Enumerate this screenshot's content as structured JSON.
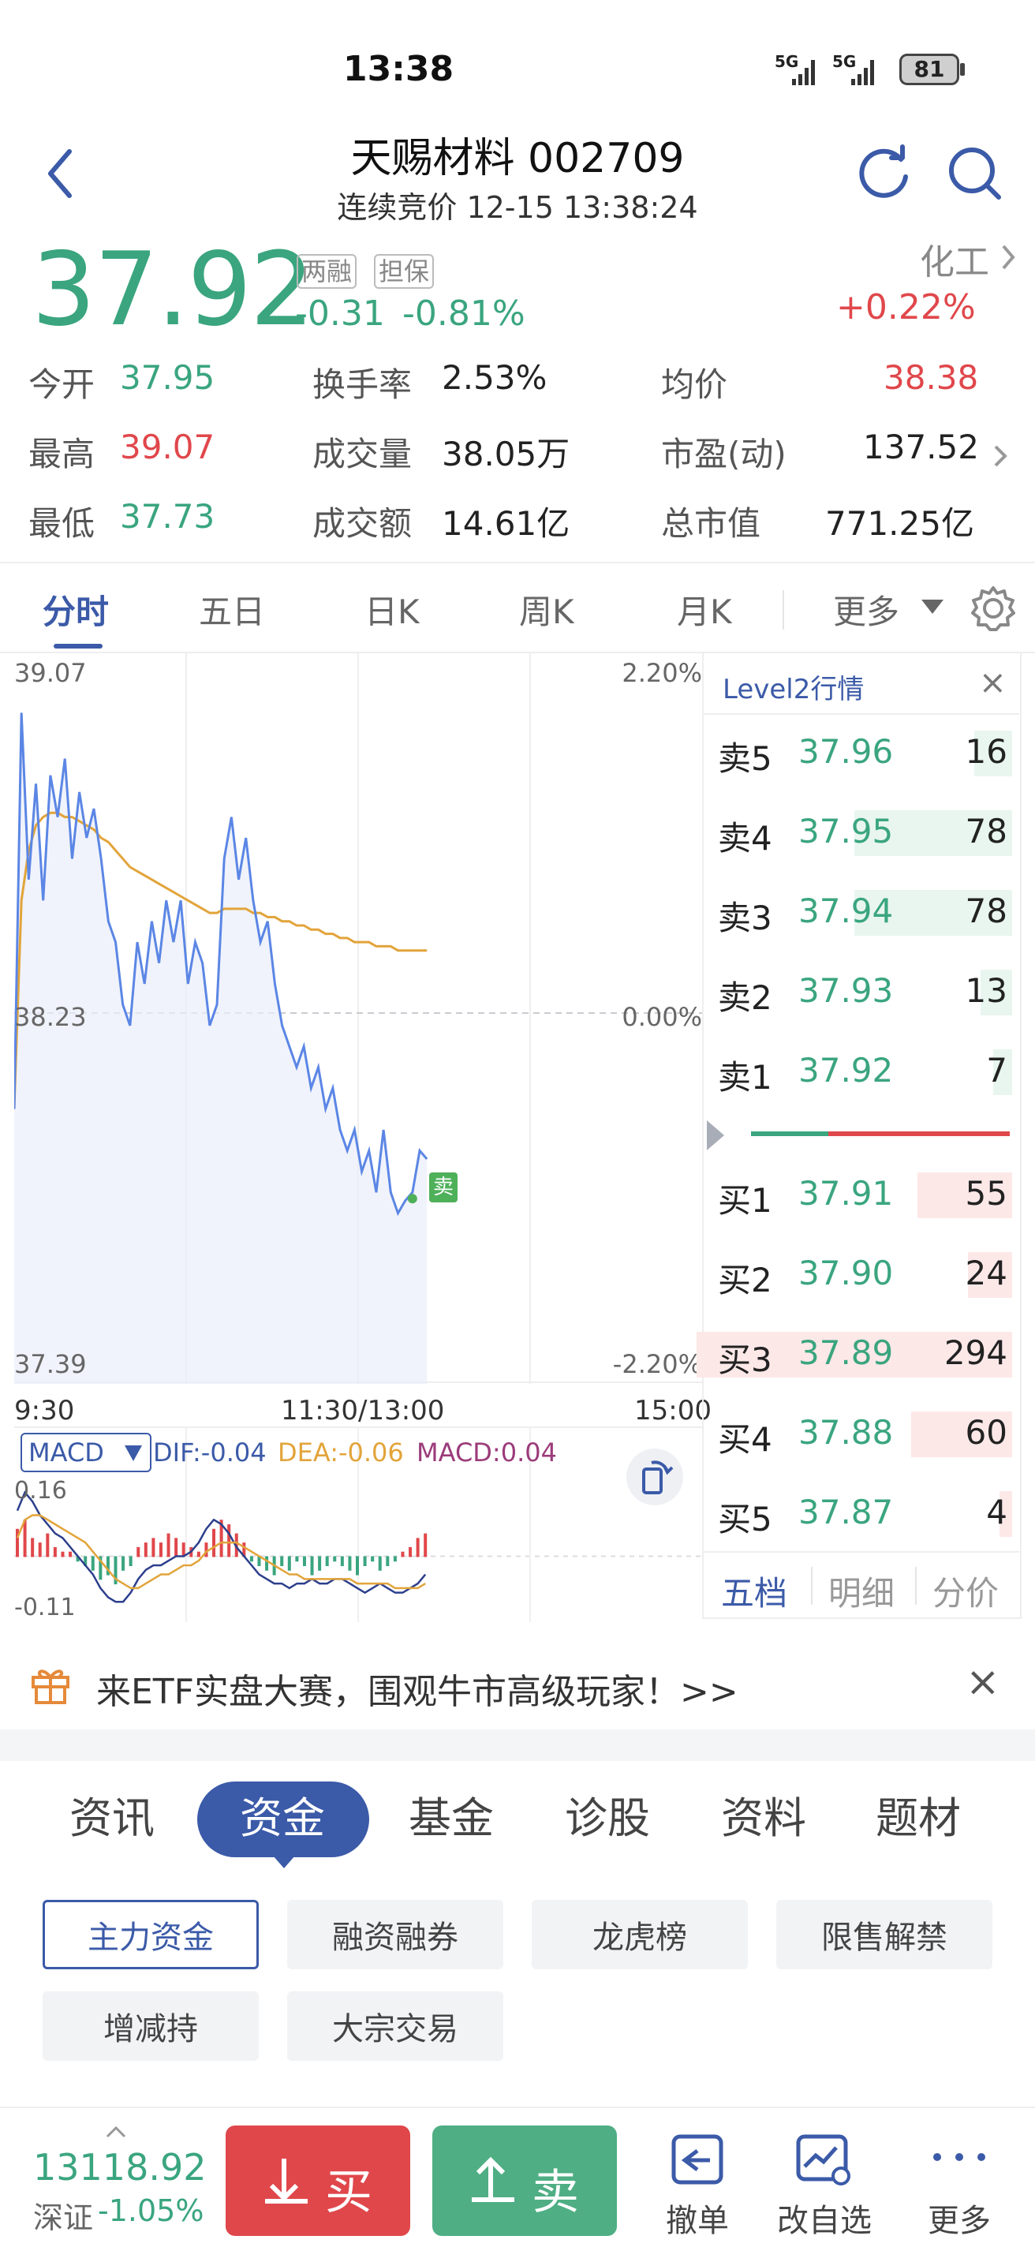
{
  "status_bar": {
    "time": "13:38",
    "signal1": "5G",
    "signal2": "5G",
    "battery": "81"
  },
  "header": {
    "title": "天赐材料 002709",
    "subtitle": "连续竞价 12-15 13:38:24"
  },
  "quote": {
    "price": "37.92",
    "tag1": "两融",
    "tag2": "担保",
    "change": "-0.31",
    "change_pct": "-0.81%",
    "sector": "化工",
    "sector_change": "+0.22%",
    "fields": [
      {
        "label": "今开",
        "value": "37.95"
      },
      {
        "label": "换手率",
        "value": "2.53%"
      },
      {
        "label": "均价",
        "value": "38.38"
      },
      {
        "label": "最高",
        "value": "39.07"
      },
      {
        "label": "成交量",
        "value": "38.05万"
      },
      {
        "label": "市盈(动)",
        "value": "137.52"
      },
      {
        "label": "最低",
        "value": "37.73"
      },
      {
        "label": "成交额",
        "value": "14.61亿"
      },
      {
        "label": "总市值",
        "value": "771.25亿"
      }
    ]
  },
  "chart_tabs": [
    "分时",
    "五日",
    "日K",
    "周K",
    "月K",
    "更多"
  ],
  "chart": {
    "y_high": "39.07",
    "y_mid": "38.23",
    "y_low": "37.39",
    "pct_high": "2.20%",
    "pct_mid": "0.00%",
    "pct_low": "-2.20%",
    "x_start": "9:30",
    "x_mid": "11:30/13:00",
    "x_end": "15:00",
    "sell_marker": "卖",
    "macd_label": "MACD",
    "dif": "DIF:-0.04",
    "dea": "DEA:-0.06",
    "macd": "MACD:0.04",
    "macd_high": "0.16",
    "macd_low": "-0.11"
  },
  "chart_data": {
    "type": "line",
    "title": "",
    "xlabel": "",
    "ylabel": "",
    "ylim": [
      37.39,
      39.07
    ],
    "reference_price": 38.23,
    "x_range": [
      "9:30",
      "15:00"
    ],
    "series": [
      {
        "price": [
          38.0,
          38.95,
          38.55,
          38.78,
          38.5,
          38.8,
          38.7,
          38.84,
          38.6,
          38.76,
          38.65,
          38.72,
          38.6,
          38.45,
          38.4,
          38.25,
          38.2,
          38.4,
          38.3,
          38.45,
          38.35,
          38.5,
          38.4,
          38.5,
          38.3,
          38.4,
          38.35,
          38.2,
          38.25,
          38.6,
          38.7,
          38.55,
          38.65,
          38.5,
          38.4,
          38.45,
          38.3,
          38.2,
          38.15,
          38.1,
          38.15,
          38.05,
          38.1,
          38.0,
          38.05,
          37.95,
          37.9,
          37.95,
          37.85,
          37.9,
          37.8,
          37.95,
          37.8,
          37.75,
          37.78,
          37.8,
          37.9,
          37.88
        ]
      },
      {
        "avg": [
          38.0,
          38.5,
          38.62,
          38.68,
          38.7,
          38.71,
          38.71,
          38.7,
          38.7,
          38.69,
          38.68,
          38.67,
          38.65,
          38.64,
          38.62,
          38.6,
          38.58,
          38.57,
          38.56,
          38.55,
          38.54,
          38.53,
          38.52,
          38.51,
          38.5,
          38.49,
          38.48,
          38.47,
          38.47,
          38.48,
          38.48,
          38.48,
          38.48,
          38.47,
          38.47,
          38.46,
          38.46,
          38.45,
          38.45,
          38.44,
          38.44,
          38.43,
          38.43,
          38.42,
          38.42,
          38.41,
          38.41,
          38.4,
          38.4,
          38.4,
          38.39,
          38.39,
          38.39,
          38.38,
          38.38,
          38.38,
          38.38,
          38.38
        ]
      }
    ],
    "macd_ylim": [
      -0.11,
      0.16
    ],
    "macd_bars": [
      0.06,
      0.08,
      0.04,
      0.03,
      0.05,
      0.02,
      0.01,
      0.01,
      -0.01,
      -0.02,
      -0.03,
      -0.05,
      -0.04,
      -0.06,
      -0.03,
      -0.02,
      0.02,
      0.03,
      0.04,
      0.03,
      0.05,
      0.04,
      0.03,
      0.02,
      0.01,
      0.03,
      0.06,
      0.08,
      0.07,
      0.05,
      0.03,
      -0.01,
      -0.02,
      -0.03,
      -0.04,
      -0.02,
      -0.03,
      -0.01,
      -0.02,
      -0.04,
      -0.03,
      -0.02,
      -0.01,
      -0.02,
      -0.03,
      -0.04,
      -0.02,
      -0.01,
      -0.03,
      -0.02,
      -0.01,
      0.01,
      0.02,
      0.04,
      0.05
    ],
    "dif": [
      0.1,
      0.14,
      0.12,
      0.09,
      0.07,
      0.05,
      0.04,
      0.02,
      0.0,
      -0.02,
      -0.04,
      -0.07,
      -0.09,
      -0.1,
      -0.1,
      -0.08,
      -0.05,
      -0.03,
      -0.02,
      -0.02,
      -0.01,
      0.0,
      0.0,
      0.01,
      0.03,
      0.06,
      0.08,
      0.07,
      0.05,
      0.02,
      0.0,
      -0.02,
      -0.04,
      -0.05,
      -0.06,
      -0.06,
      -0.07,
      -0.06,
      -0.06,
      -0.05,
      -0.06,
      -0.06,
      -0.05,
      -0.05,
      -0.06,
      -0.07,
      -0.08,
      -0.07,
      -0.06,
      -0.07,
      -0.08,
      -0.08,
      -0.07,
      -0.06,
      -0.04
    ],
    "dea": [
      0.04,
      0.08,
      0.09,
      0.09,
      0.08,
      0.07,
      0.06,
      0.05,
      0.04,
      0.03,
      0.01,
      -0.01,
      -0.03,
      -0.05,
      -0.06,
      -0.07,
      -0.07,
      -0.06,
      -0.05,
      -0.04,
      -0.04,
      -0.03,
      -0.02,
      -0.02,
      -0.01,
      0.01,
      0.02,
      0.03,
      0.03,
      0.03,
      0.02,
      0.01,
      0.0,
      -0.01,
      -0.02,
      -0.03,
      -0.04,
      -0.04,
      -0.05,
      -0.05,
      -0.05,
      -0.05,
      -0.05,
      -0.05,
      -0.05,
      -0.06,
      -0.06,
      -0.06,
      -0.06,
      -0.06,
      -0.07,
      -0.07,
      -0.07,
      -0.07,
      -0.06
    ]
  },
  "level2": {
    "title": "Level2行情",
    "close": "×",
    "sells": [
      {
        "label": "卖5",
        "price": "37.96",
        "vol": "16",
        "weight": 0.12
      },
      {
        "label": "卖4",
        "price": "37.95",
        "vol": "78",
        "weight": 0.5
      },
      {
        "label": "卖3",
        "price": "37.94",
        "vol": "78",
        "weight": 0.5
      },
      {
        "label": "卖2",
        "price": "37.93",
        "vol": "13",
        "weight": 0.1
      },
      {
        "label": "卖1",
        "price": "37.92",
        "vol": "7",
        "weight": 0.06
      }
    ],
    "buys": [
      {
        "label": "买1",
        "price": "37.91",
        "vol": "55",
        "weight": 0.3
      },
      {
        "label": "买2",
        "price": "37.90",
        "vol": "24",
        "weight": 0.14
      },
      {
        "label": "买3",
        "price": "37.89",
        "vol": "294",
        "weight": 1.0
      },
      {
        "label": "买4",
        "price": "37.88",
        "vol": "60",
        "weight": 0.32
      },
      {
        "label": "买5",
        "price": "37.87",
        "vol": "4",
        "weight": 0.04
      }
    ],
    "tabs": [
      "五档",
      "明细",
      "分价"
    ]
  },
  "promo": {
    "text": "来ETF实盘大赛，围观牛市高级玩家！>>",
    "close": "×"
  },
  "content_tabs": [
    "资讯",
    "资金",
    "基金",
    "诊股",
    "资料",
    "题材"
  ],
  "sub_tabs": [
    "主力资金",
    "融资融券",
    "龙虎榜",
    "限售解禁",
    "增减持",
    "大宗交易"
  ],
  "bottom": {
    "index_value": "13118.92",
    "index_name": "深证",
    "index_change": "-1.05%",
    "buy": "买",
    "sell": "卖",
    "cancel": "撤单",
    "watchlist": "改自选",
    "more": "更多"
  },
  "colors": {
    "green": "#3aa57f",
    "red": "#e0474b",
    "accent": "#3b5aa8",
    "price_line": "#5b86e5",
    "avg_line": "#e2a43a"
  }
}
